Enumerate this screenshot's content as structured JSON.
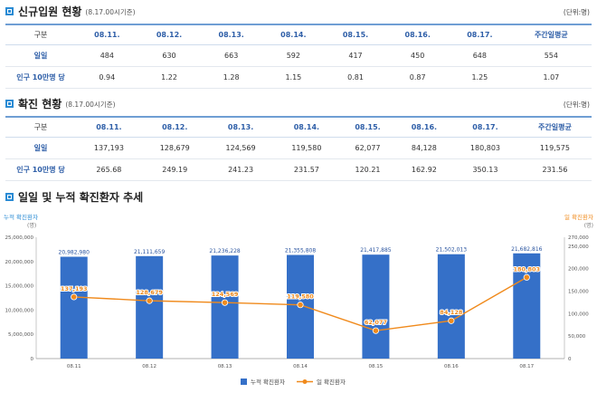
{
  "section1": {
    "title": "신규입원 현황",
    "subtitle": "(8.17.00시기준)",
    "unit": "(단위:명)"
  },
  "table1": {
    "headers": [
      "구분",
      "08.11.",
      "08.12.",
      "08.13.",
      "08.14.",
      "08.15.",
      "08.16.",
      "08.17.",
      "주간일평균"
    ],
    "rows": [
      {
        "label": "일일",
        "cells": [
          "484",
          "630",
          "663",
          "592",
          "417",
          "450",
          "648",
          "554"
        ]
      },
      {
        "label": "인구 10만명 당",
        "cells": [
          "0.94",
          "1.22",
          "1.28",
          "1.15",
          "0.81",
          "0.87",
          "1.25",
          "1.07"
        ]
      }
    ]
  },
  "section2": {
    "title": "확진 현황",
    "subtitle": "(8.17.00시기준)",
    "unit": "(단위:명)"
  },
  "table2": {
    "headers": [
      "구분",
      "08.11.",
      "08.12.",
      "08.13.",
      "08.14.",
      "08.15.",
      "08.16.",
      "08.17.",
      "주간일평균"
    ],
    "rows": [
      {
        "label": "일일",
        "cells": [
          "137,193",
          "128,679",
          "124,569",
          "119,580",
          "62,077",
          "84,128",
          "180,803",
          "119,575"
        ]
      },
      {
        "label": "인구 10만명 당",
        "cells": [
          "265.68",
          "249.19",
          "241.23",
          "231.57",
          "120.21",
          "162.92",
          "350.13",
          "231.56"
        ]
      }
    ]
  },
  "section3": {
    "title": "일일 및 누적 확진환자 추세"
  },
  "colors": {
    "bar": "#3570c8",
    "line": "#f08a1c",
    "accent": "#2a8bd4",
    "bar_label": "#2b55a0",
    "line_label": "#ffffff"
  },
  "chart_data": {
    "type": "bar",
    "categories": [
      "08.11",
      "08.12",
      "08.13",
      "08.14",
      "08.15",
      "08.16",
      "08.17"
    ],
    "series": [
      {
        "name": "누적 확진환자",
        "type": "bar",
        "axis": "left",
        "values": [
          20982980,
          21111659,
          21236228,
          21355808,
          21417885,
          21502013,
          21682816
        ],
        "labels": [
          "20,982,980",
          "21,111,659",
          "21,236,228",
          "21,355,808",
          "21,417,885",
          "21,502,013",
          "21,682,816"
        ]
      },
      {
        "name": "일 확진환자",
        "type": "line",
        "axis": "right",
        "values": [
          137193,
          128679,
          124569,
          119580,
          62077,
          84128,
          180803
        ],
        "labels": [
          "137,193",
          "128,679",
          "124,569",
          "119,580",
          "62,077",
          "84,128",
          "180,803"
        ]
      }
    ],
    "left_axis": {
      "title": "누적 확진환자",
      "unit": "(명)",
      "ylim": [
        0,
        25000000
      ],
      "ticks": [
        0,
        5000000,
        10000000,
        15000000,
        20000000,
        25000000
      ],
      "tick_labels": [
        "0",
        "5,000,000",
        "10,000,000",
        "15,000,000",
        "20,000,000",
        "25,000,000"
      ]
    },
    "right_axis": {
      "title": "일 확진환자",
      "unit": "(명)",
      "ylim": [
        0,
        270000
      ],
      "ticks": [
        0,
        50000,
        100000,
        150000,
        200000,
        250000,
        270000
      ],
      "tick_labels": [
        "0",
        "50,000",
        "100,000",
        "150,000",
        "200,000",
        "250,000",
        "270,000"
      ]
    },
    "legend_position": "bottom-center",
    "grid": false
  }
}
